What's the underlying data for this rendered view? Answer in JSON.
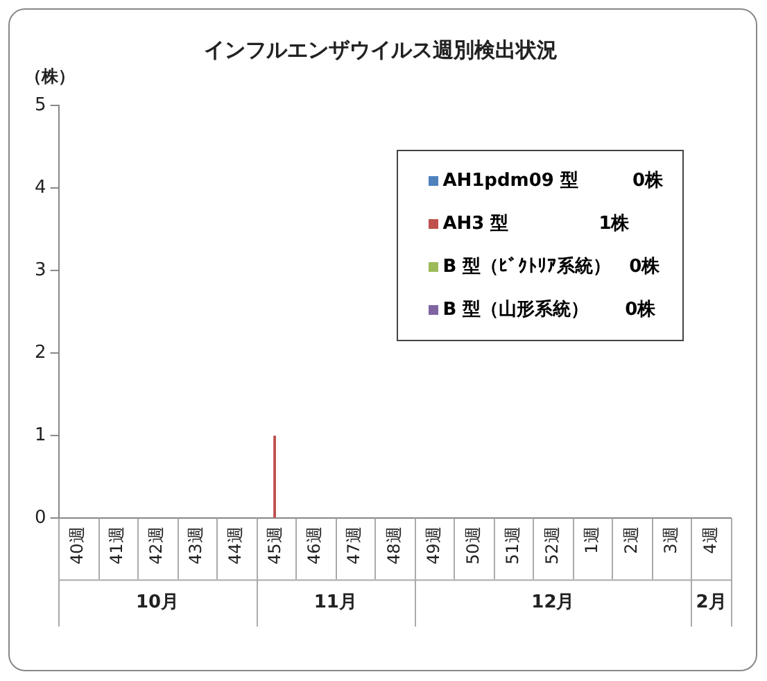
{
  "chart_data": {
    "type": "bar",
    "title": "インフルエンザウイルス週別検出状況",
    "ylabel": "（株）",
    "categories": [
      "40週",
      "41週",
      "42週",
      "43週",
      "44週",
      "45週",
      "46週",
      "47週",
      "48週",
      "49週",
      "50週",
      "51週",
      "52週",
      "1週",
      "2週",
      "3週",
      "4週"
    ],
    "series": [
      {
        "name": "AH1pdm09 型　　　0株",
        "color": "#4f81bd",
        "values": [
          0,
          0,
          0,
          0,
          0,
          0,
          0,
          0,
          0,
          0,
          0,
          0,
          0,
          0,
          0,
          0,
          0
        ]
      },
      {
        "name": "AH3 型　　　　　1株",
        "color": "#c0504d",
        "values": [
          0,
          0,
          0,
          0,
          0,
          1,
          0,
          0,
          0,
          0,
          0,
          0,
          0,
          0,
          0,
          0,
          0
        ]
      },
      {
        "name": "B 型（ﾋﾞｸﾄﾘｱ系統）　0株",
        "color": "#9bbb59",
        "values": [
          0,
          0,
          0,
          0,
          0,
          0,
          0,
          0,
          0,
          0,
          0,
          0,
          0,
          0,
          0,
          0,
          0
        ]
      },
      {
        "name": "B 型（山形系統）　　0株",
        "color": "#8064a2",
        "values": [
          0,
          0,
          0,
          0,
          0,
          0,
          0,
          0,
          0,
          0,
          0,
          0,
          0,
          0,
          0,
          0,
          0
        ]
      }
    ],
    "ylim": [
      0,
      5
    ],
    "yticks": [
      0,
      1,
      2,
      3,
      4,
      5
    ],
    "grid": false,
    "legend": "top right",
    "annotations": [
      "10月",
      "11月",
      "12月",
      "2月"
    ]
  }
}
